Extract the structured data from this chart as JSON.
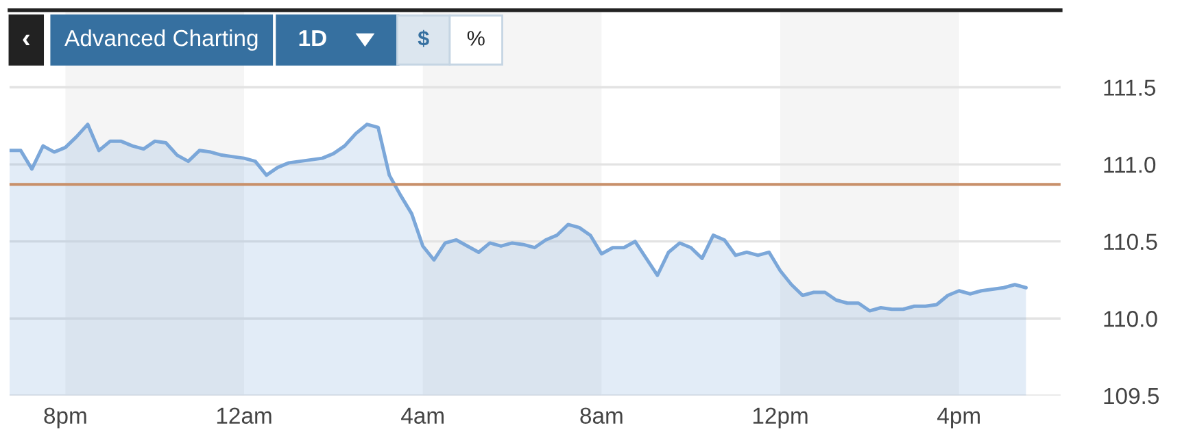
{
  "chart_data": {
    "type": "area",
    "annotations": [
      "‹",
      "Advanced Charting",
      "1D",
      "$",
      "%"
    ],
    "categories": [
      null,
      null,
      null,
      null,
      null,
      "8pm",
      null,
      null,
      null,
      null,
      null,
      null,
      null,
      null,
      null,
      null,
      null,
      null,
      null,
      null,
      null,
      "12am",
      null,
      null,
      null,
      null,
      null,
      null,
      null,
      null,
      null,
      null,
      null,
      null,
      null,
      null,
      null,
      "4am",
      null,
      null,
      null,
      null,
      null,
      null,
      null,
      null,
      null,
      null,
      null,
      null,
      null,
      null,
      null,
      "8am",
      null,
      null,
      null,
      null,
      null,
      null,
      null,
      null,
      null,
      null,
      null,
      null,
      null,
      null,
      null,
      "12pm",
      null,
      null,
      null,
      null,
      null,
      null,
      null,
      null,
      null,
      null,
      null,
      null,
      null,
      null,
      null,
      "4pm",
      null,
      null,
      null,
      null,
      null,
      null
    ],
    "series": [
      {
        "color": "#7ba7d9",
        "values": [
          111.09,
          111.09,
          110.97,
          111.12,
          111.08,
          111.11,
          111.18,
          111.26,
          111.09,
          111.15,
          111.15,
          111.12,
          111.1,
          111.15,
          111.14,
          111.06,
          111.02,
          111.09,
          111.08,
          111.06,
          111.05,
          111.04,
          111.02,
          110.93,
          110.98,
          111.01,
          111.02,
          111.03,
          111.04,
          111.07,
          111.12,
          111.2,
          111.26,
          111.24,
          110.93,
          110.8,
          110.68,
          110.47,
          110.38,
          110.49,
          110.51,
          110.47,
          110.43,
          110.49,
          110.47,
          110.49,
          110.48,
          110.46,
          110.51,
          110.54,
          110.61,
          110.59,
          110.54,
          110.42,
          110.46,
          110.46,
          110.5,
          110.39,
          110.28,
          110.43,
          110.49,
          110.46,
          110.39,
          110.54,
          110.51,
          110.41,
          110.43,
          110.41,
          110.43,
          110.31,
          110.22,
          110.15,
          110.17,
          110.17,
          110.12,
          110.1,
          110.1,
          110.05,
          110.07,
          110.06,
          110.06,
          110.08,
          110.08,
          110.09,
          110.15,
          110.18,
          110.16,
          110.18,
          110.19,
          110.2,
          110.22,
          110.2
        ]
      }
    ],
    "ylim": [
      109.5,
      112.0
    ],
    "yticks": [
      109.5,
      {
        "value": 110,
        "label": "110.0"
      },
      110.5,
      {
        "value": 111,
        "label": "111.0"
      },
      111.5
    ],
    "ref_lines": [
      {
        "axis": "y",
        "value": 110.87,
        "color": "#c8906a"
      }
    ],
    "bands": [
      {
        "axis": "x",
        "from": "8pm",
        "to": "12am",
        "color": "#f5f5f5"
      },
      {
        "axis": "x",
        "from": "4am",
        "to": "8am",
        "color": "#f5f5f5"
      },
      {
        "axis": "x",
        "from": "12pm",
        "to": "4pm",
        "color": "#f5f5f5"
      }
    ],
    "grid": "y",
    "legend": false
  }
}
